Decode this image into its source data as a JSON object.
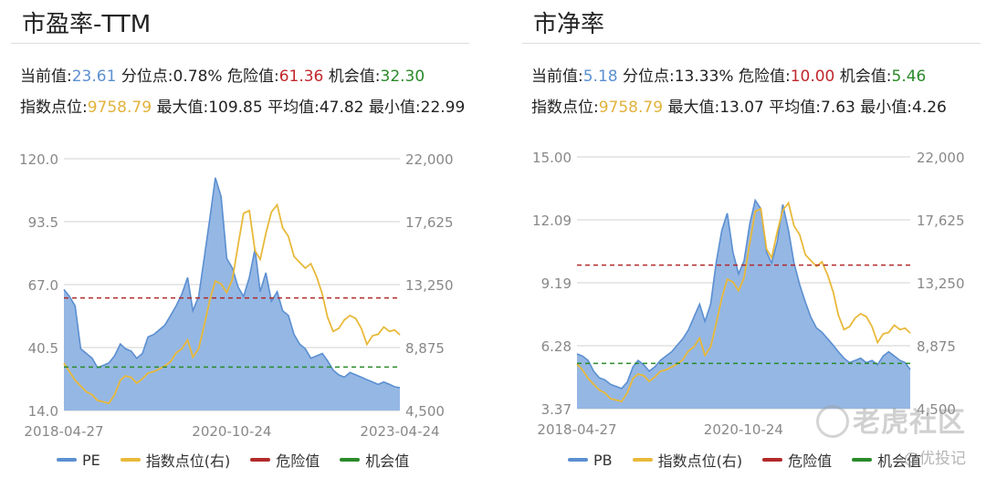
{
  "panels": [
    {
      "title": "市盈率-TTM",
      "stats": {
        "current_label": "当前值:",
        "current_value": "23.61",
        "percentile_label": "分位点:",
        "percentile_value": "0.78%",
        "danger_label": "危险值:",
        "danger_value": "61.36",
        "opportunity_label": "机会值:",
        "opportunity_value": "32.30",
        "index_label": "指数点位:",
        "index_value": "9758.79",
        "max_label": "最大值:",
        "max_value": "109.85",
        "avg_label": "平均值:",
        "avg_value": "47.82",
        "min_label": "最小值:",
        "min_value": "22.99"
      }
    },
    {
      "title": "市净率",
      "stats": {
        "current_label": "当前值:",
        "current_value": "5.18",
        "percentile_label": "分位点:",
        "percentile_value": "13.33%",
        "danger_label": "危险值:",
        "danger_value": "10.00",
        "opportunity_label": "机会值:",
        "opportunity_value": "5.46",
        "index_label": "指数点位:",
        "index_value": "9758.79",
        "max_label": "最大值:",
        "max_value": "13.07",
        "avg_label": "平均值:",
        "avg_value": "7.63",
        "min_label": "最小值:",
        "min_value": "4.26"
      }
    }
  ],
  "legend": {
    "pe": "PE",
    "pb": "PB",
    "index": "指数点位(右)",
    "danger": "危险值",
    "opportunity": "机会值"
  },
  "watermark": {
    "main": "老虎社区",
    "sub": "@优投记"
  },
  "colors": {
    "area_fill": "#8fb3e3",
    "area_line": "#5b8fd1",
    "index_line": "#e8b93a",
    "danger": "#b22a2a",
    "opportunity": "#2a8a2a",
    "grid": "#d0d0d0",
    "axis_text": "#888888"
  },
  "chart_data": [
    {
      "type": "area",
      "title": "市盈率-TTM",
      "x_ticks": [
        "2018-04-27",
        "2020-10-24",
        "2023-04-24"
      ],
      "x_range": [
        "2018-04-27",
        "2023-04-24"
      ],
      "y_left": {
        "ticks": [
          "120.0",
          "93.5",
          "67.0",
          "40.5",
          "14.0"
        ],
        "range": [
          14.0,
          120.0
        ]
      },
      "y_right": {
        "ticks": [
          "22,000",
          "17,625",
          "13,250",
          "8,875",
          "4,500"
        ],
        "range": [
          4500,
          22000
        ]
      },
      "series": [
        {
          "name": "PE",
          "axis": "left",
          "x": [
            "2018-04-27",
            "2018-05-27",
            "2018-06-27",
            "2018-07-27",
            "2018-08-27",
            "2018-09-27",
            "2018-10-27",
            "2018-11-27",
            "2018-12-27",
            "2019-01-27",
            "2019-02-27",
            "2019-03-27",
            "2019-04-27",
            "2019-05-27",
            "2019-06-27",
            "2019-07-27",
            "2019-08-27",
            "2019-09-27",
            "2019-10-27",
            "2019-11-27",
            "2019-12-27",
            "2020-01-27",
            "2020-02-27",
            "2020-03-27",
            "2020-04-27",
            "2020-05-27",
            "2020-06-27",
            "2020-07-27",
            "2020-08-27",
            "2020-09-27",
            "2020-10-27",
            "2020-11-27",
            "2020-12-27",
            "2021-01-27",
            "2021-02-27",
            "2021-03-27",
            "2021-04-27",
            "2021-05-27",
            "2021-06-27",
            "2021-07-27",
            "2021-08-27",
            "2021-09-27",
            "2021-10-27",
            "2021-11-27",
            "2021-12-27",
            "2022-01-27",
            "2022-02-27",
            "2022-03-27",
            "2022-04-27",
            "2022-05-27",
            "2022-06-27",
            "2022-07-27",
            "2022-08-27",
            "2022-09-27",
            "2022-10-27",
            "2022-11-27",
            "2022-12-27",
            "2023-01-27",
            "2023-02-27",
            "2023-03-27",
            "2023-04-24"
          ],
          "values": [
            65,
            62,
            58,
            40,
            38,
            36,
            32,
            33,
            34,
            37,
            42,
            40,
            39,
            36,
            38,
            45,
            46,
            48,
            50,
            54,
            58,
            63,
            70,
            56,
            62,
            78,
            95,
            112,
            104,
            78,
            74,
            66,
            62,
            70,
            82,
            64,
            72,
            60,
            64,
            56,
            54,
            46,
            42,
            40,
            36,
            37,
            38,
            35,
            31,
            29,
            28,
            30,
            29,
            28,
            27,
            26,
            25,
            26,
            25,
            24,
            23.61
          ]
        },
        {
          "name": "指数点位(右)",
          "axis": "right",
          "x": [
            "2018-04-27",
            "2018-05-27",
            "2018-06-27",
            "2018-07-27",
            "2018-08-27",
            "2018-09-27",
            "2018-10-27",
            "2018-11-27",
            "2018-12-27",
            "2019-01-27",
            "2019-02-27",
            "2019-03-27",
            "2019-04-27",
            "2019-05-27",
            "2019-06-27",
            "2019-07-27",
            "2019-08-27",
            "2019-09-27",
            "2019-10-27",
            "2019-11-27",
            "2019-12-27",
            "2020-01-27",
            "2020-02-27",
            "2020-03-27",
            "2020-04-27",
            "2020-05-27",
            "2020-06-27",
            "2020-07-27",
            "2020-08-27",
            "2020-09-27",
            "2020-10-27",
            "2020-11-27",
            "2020-12-27",
            "2021-01-27",
            "2021-02-27",
            "2021-03-27",
            "2021-04-27",
            "2021-05-27",
            "2021-06-27",
            "2021-07-27",
            "2021-08-27",
            "2021-09-27",
            "2021-10-27",
            "2021-11-27",
            "2021-12-27",
            "2022-01-27",
            "2022-02-27",
            "2022-03-27",
            "2022-04-27",
            "2022-05-27",
            "2022-06-27",
            "2022-07-27",
            "2022-08-27",
            "2022-09-27",
            "2022-10-27",
            "2022-11-27",
            "2022-12-27",
            "2023-01-27",
            "2023-02-27",
            "2023-03-27",
            "2023-04-24"
          ],
          "values": [
            7800,
            7200,
            6600,
            6200,
            5800,
            5600,
            5200,
            5100,
            5000,
            5600,
            6600,
            6900,
            6800,
            6400,
            6700,
            7100,
            7200,
            7400,
            7600,
            7900,
            8500,
            8800,
            9400,
            8200,
            8800,
            10400,
            12200,
            13500,
            13300,
            12700,
            13600,
            16000,
            18200,
            18400,
            15600,
            15000,
            16800,
            18300,
            18800,
            17200,
            16600,
            15200,
            14800,
            14400,
            14700,
            13800,
            12600,
            11000,
            10000,
            10200,
            10800,
            11100,
            10900,
            10200,
            9100,
            9700,
            9800,
            10300,
            10000,
            10100,
            9758.79
          ]
        },
        {
          "name": "危险值",
          "axis": "left",
          "values": [
            61.36
          ]
        },
        {
          "name": "机会值",
          "axis": "left",
          "values": [
            32.3
          ]
        }
      ],
      "legend_position": "bottom"
    },
    {
      "type": "area",
      "title": "市净率",
      "x_ticks": [
        "2018-04-27",
        "2020-10-24"
      ],
      "x_range": [
        "2018-04-27",
        "2023-04-24"
      ],
      "y_left": {
        "ticks": [
          "15.00",
          "12.09",
          "9.19",
          "6.28",
          "3.37"
        ],
        "range": [
          3.37,
          15.0
        ]
      },
      "y_right": {
        "ticks": [
          "22,000",
          "17,625",
          "13,250",
          "8,875",
          "4,500"
        ],
        "range": [
          4500,
          22000
        ]
      },
      "series": [
        {
          "name": "PB",
          "axis": "left",
          "x": [
            "2018-04-27",
            "2018-05-27",
            "2018-06-27",
            "2018-07-27",
            "2018-08-27",
            "2018-09-27",
            "2018-10-27",
            "2018-11-27",
            "2018-12-27",
            "2019-01-27",
            "2019-02-27",
            "2019-03-27",
            "2019-04-27",
            "2019-05-27",
            "2019-06-27",
            "2019-07-27",
            "2019-08-27",
            "2019-09-27",
            "2019-10-27",
            "2019-11-27",
            "2019-12-27",
            "2020-01-27",
            "2020-02-27",
            "2020-03-27",
            "2020-04-27",
            "2020-05-27",
            "2020-06-27",
            "2020-07-27",
            "2020-08-27",
            "2020-09-27",
            "2020-10-27",
            "2020-11-27",
            "2020-12-27",
            "2021-01-27",
            "2021-02-27",
            "2021-03-27",
            "2021-04-27",
            "2021-05-27",
            "2021-06-27",
            "2021-07-27",
            "2021-08-27",
            "2021-09-27",
            "2021-10-27",
            "2021-11-27",
            "2021-12-27",
            "2022-01-27",
            "2022-02-27",
            "2022-03-27",
            "2022-04-27",
            "2022-05-27",
            "2022-06-27",
            "2022-07-27",
            "2022-08-27",
            "2022-09-27",
            "2022-10-27",
            "2022-11-27",
            "2022-12-27",
            "2023-01-27",
            "2023-02-27",
            "2023-03-27",
            "2023-04-24"
          ],
          "values": [
            5.9,
            5.8,
            5.6,
            5.1,
            4.8,
            4.7,
            4.5,
            4.4,
            4.3,
            4.6,
            5.3,
            5.6,
            5.4,
            5.1,
            5.3,
            5.6,
            5.8,
            6.0,
            6.3,
            6.6,
            7.0,
            7.6,
            8.2,
            7.4,
            8.2,
            10.1,
            11.6,
            12.4,
            10.6,
            9.6,
            10.2,
            11.9,
            13.0,
            12.6,
            10.6,
            10.1,
            11.1,
            12.8,
            11.6,
            10.1,
            9.1,
            8.3,
            7.6,
            7.1,
            6.9,
            6.6,
            6.3,
            6.0,
            5.7,
            5.5,
            5.6,
            5.7,
            5.5,
            5.6,
            5.4,
            5.8,
            6.0,
            5.8,
            5.6,
            5.5,
            5.18
          ]
        },
        {
          "name": "指数点位(右)",
          "axis": "right",
          "x": [
            "2018-04-27",
            "2018-05-27",
            "2018-06-27",
            "2018-07-27",
            "2018-08-27",
            "2018-09-27",
            "2018-10-27",
            "2018-11-27",
            "2018-12-27",
            "2019-01-27",
            "2019-02-27",
            "2019-03-27",
            "2019-04-27",
            "2019-05-27",
            "2019-06-27",
            "2019-07-27",
            "2019-08-27",
            "2019-09-27",
            "2019-10-27",
            "2019-11-27",
            "2019-12-27",
            "2020-01-27",
            "2020-02-27",
            "2020-03-27",
            "2020-04-27",
            "2020-05-27",
            "2020-06-27",
            "2020-07-27",
            "2020-08-27",
            "2020-09-27",
            "2020-10-27",
            "2020-11-27",
            "2020-12-27",
            "2021-01-27",
            "2021-02-27",
            "2021-03-27",
            "2021-04-27",
            "2021-05-27",
            "2021-06-27",
            "2021-07-27",
            "2021-08-27",
            "2021-09-27",
            "2021-10-27",
            "2021-11-27",
            "2021-12-27",
            "2022-01-27",
            "2022-02-27",
            "2022-03-27",
            "2022-04-27",
            "2022-05-27",
            "2022-06-27",
            "2022-07-27",
            "2022-08-27",
            "2022-09-27",
            "2022-10-27",
            "2022-11-27",
            "2022-12-27",
            "2023-01-27",
            "2023-02-27",
            "2023-03-27",
            "2023-04-24"
          ],
          "values": [
            7600,
            7200,
            6600,
            6200,
            5800,
            5600,
            5200,
            5100,
            5000,
            5600,
            6600,
            6900,
            6800,
            6400,
            6700,
            7100,
            7200,
            7400,
            7600,
            7900,
            8500,
            8800,
            9400,
            8200,
            8800,
            10400,
            12200,
            13500,
            13300,
            12700,
            13600,
            16000,
            18200,
            18400,
            15600,
            15000,
            16800,
            18300,
            18800,
            17200,
            16600,
            15200,
            14800,
            14400,
            14700,
            13800,
            12600,
            11000,
            10000,
            10200,
            10800,
            11100,
            10900,
            10200,
            9100,
            9700,
            9800,
            10300,
            10000,
            10100,
            9758.79
          ]
        },
        {
          "name": "危险值",
          "axis": "left",
          "values": [
            10.0
          ]
        },
        {
          "name": "机会值",
          "axis": "left",
          "values": [
            5.46
          ]
        }
      ],
      "legend_position": "bottom"
    }
  ]
}
